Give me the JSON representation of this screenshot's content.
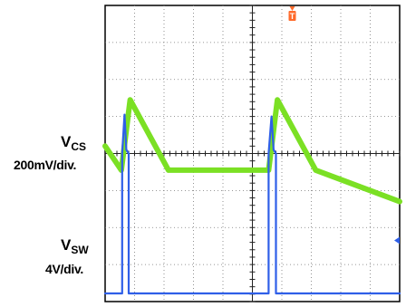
{
  "chart_data": {
    "type": "line",
    "title": "",
    "grid": true,
    "grid_divisions": {
      "x": 10,
      "y": 8
    },
    "trigger_marker": "T",
    "trigger_level_marker": "arrow-left",
    "series": [
      {
        "name": "VCS",
        "label_main": "V",
        "label_sub": "CS",
        "scale": "200mV/div.",
        "color": "#7be024",
        "unit_x": "div",
        "unit_y": "div",
        "x": [
          0.0,
          0.55,
          0.85,
          2.15,
          5.55,
          5.85,
          7.15,
          10.0
        ],
        "y": [
          4.2,
          3.55,
          5.45,
          3.55,
          3.55,
          5.45,
          3.55,
          2.7
        ]
      },
      {
        "name": "VSW",
        "label_main": "V",
        "label_sub": "SW",
        "scale": "4V/div.",
        "color": "#2f5fe8",
        "unit_x": "div",
        "unit_y": "div",
        "x": [
          0.0,
          0.58,
          0.58,
          0.66,
          0.72,
          0.8,
          0.8,
          1.25,
          1.25,
          5.55,
          5.55,
          5.65,
          5.72,
          5.8,
          5.8,
          6.25,
          6.25,
          10.0
        ],
        "y": [
          0.22,
          0.22,
          4.0,
          5.05,
          4.1,
          4.0,
          0.22,
          0.22,
          0.22,
          0.22,
          4.0,
          5.0,
          4.1,
          4.0,
          0.22,
          0.22,
          0.22,
          0.22
        ]
      }
    ]
  }
}
